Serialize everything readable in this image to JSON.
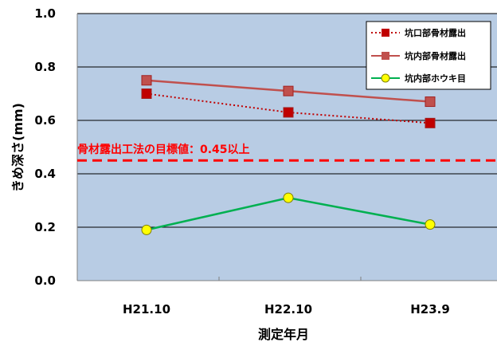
{
  "chart_data": {
    "type": "line",
    "categories": [
      "H21.10",
      "H22.10",
      "H23.9"
    ],
    "xlabel": "測定年月",
    "ylabel": "きめ深さ(mm)",
    "ylim": [
      0,
      1.0
    ],
    "yticks": [
      "0.0",
      "0.2",
      "0.4",
      "0.6",
      "0.8",
      "1.0"
    ],
    "grid": true,
    "legend_position": "top-right",
    "plot_background": "#b8cce4",
    "series": [
      {
        "name": "坑口部骨材露出",
        "values": [
          0.7,
          0.63,
          0.59
        ],
        "color": "#c00000",
        "line_style": "dotted",
        "marker": "square"
      },
      {
        "name": "坑内部骨材露出",
        "values": [
          0.75,
          0.71,
          0.67
        ],
        "color": "#c0504d",
        "line_style": "solid",
        "marker": "square"
      },
      {
        "name": "坑内部ホウキ目",
        "values": [
          0.19,
          0.31,
          0.21
        ],
        "color": "#00b050",
        "line_style": "solid",
        "marker": "circle"
      }
    ],
    "target_line": {
      "label": "骨材露出工法の目標値：0.45以上",
      "value": 0.45,
      "color": "#ff0000"
    }
  }
}
